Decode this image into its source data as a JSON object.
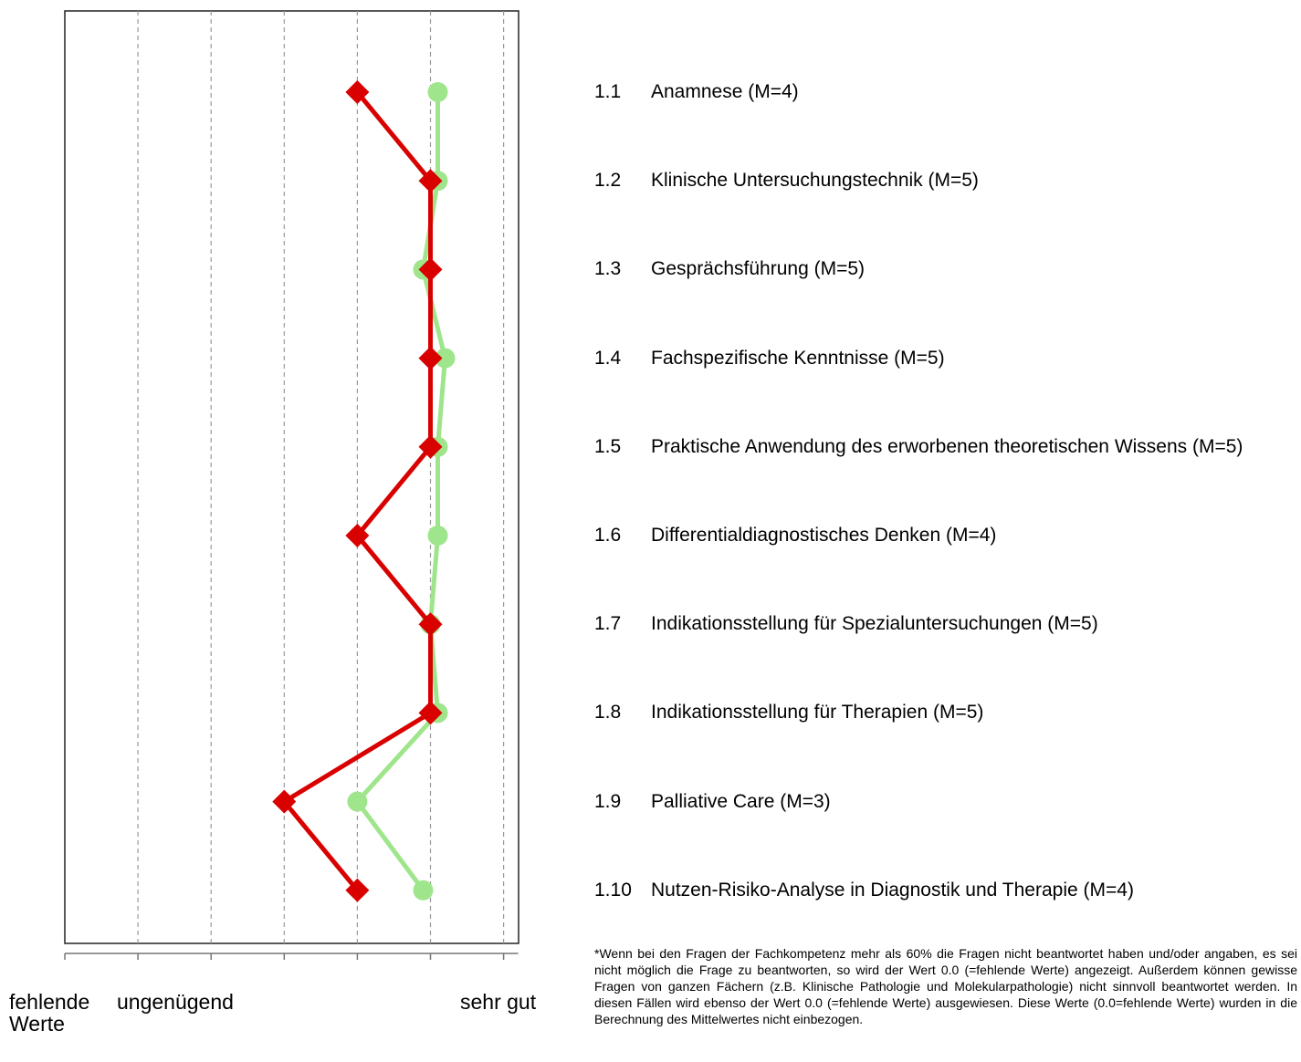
{
  "chart_data": {
    "type": "line",
    "orientation": "horizontal",
    "xlim": [
      0,
      6.2
    ],
    "x_ticks": [
      "0",
      "1",
      "2",
      "3",
      "4",
      "5",
      "6"
    ],
    "grid": "vertical dashed",
    "items": [
      {
        "num": "1.1",
        "label": "Anamnese (M=4)"
      },
      {
        "num": "1.2",
        "label": "Klinische Untersuchungstechnik (M=5)"
      },
      {
        "num": "1.3",
        "label": "Gesprächsführung (M=5)"
      },
      {
        "num": "1.4",
        "label": "Fachspezifische Kenntnisse (M=5)"
      },
      {
        "num": "1.5",
        "label": "Praktische Anwendung des erworbenen theoretischen Wissens (M=5)"
      },
      {
        "num": "1.6",
        "label": "Differentialdiagnostisches Denken (M=4)"
      },
      {
        "num": "1.7",
        "label": "Indikationsstellung für Spezialuntersuchungen (M=5)"
      },
      {
        "num": "1.8",
        "label": "Indikationsstellung für Therapien (M=5)"
      },
      {
        "num": "1.9",
        "label": "Palliative Care (M=3)"
      },
      {
        "num": "1.10",
        "label": "Nutzen-Risiko-Analyse in Diagnostik und Therapie (M=4)"
      }
    ],
    "series": [
      {
        "color": "#9fe58c",
        "marker": "circle",
        "values": [
          5.1,
          5.1,
          4.9,
          5.2,
          5.1,
          5.1,
          5.0,
          5.1,
          4.0,
          4.9
        ]
      },
      {
        "color": "#d90000",
        "marker": "diamond",
        "values": [
          4,
          5,
          5,
          5,
          5,
          4,
          5,
          5,
          3,
          4
        ]
      }
    ]
  },
  "scale_labels": {
    "missing": "fehlende\nWerte",
    "insufficient": "ungenügend",
    "very_good": "sehr gut"
  },
  "footnote": "*Wenn bei den Fragen der Fachkompetenz mehr als 60% die Fragen nicht beantwortet haben und/oder angaben, es sei nicht möglich die Frage zu beantworten, so wird der Wert 0.0 (=fehlende Werte) angezeigt. Außerdem können gewisse Fragen von ganzen Fächern (z.B. Klinische Pathologie und Molekularpathologie) nicht sinnvoll beantwortet werden. In diesen Fällen wird ebenso der Wert 0.0 (=fehlende Werte) ausgewiesen. Diese Werte (0.0=fehlende Werte) wurden in die Berechnung des Mittelwertes nicht einbezogen."
}
